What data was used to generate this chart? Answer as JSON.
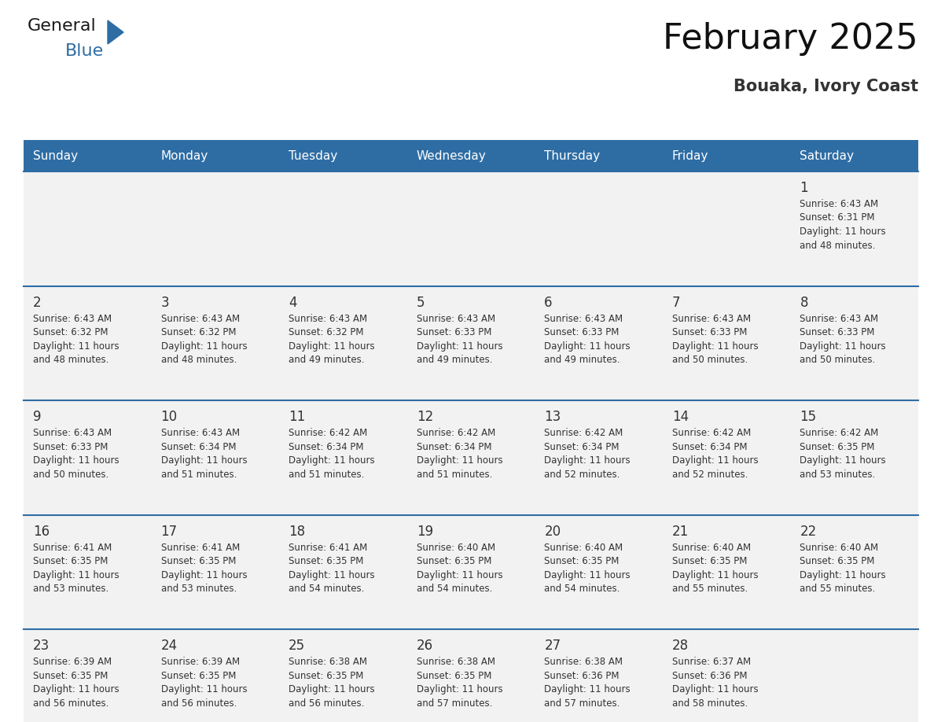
{
  "title": "February 2025",
  "subtitle": "Bouaka, Ivory Coast",
  "header_bg": "#2E6DA4",
  "header_text_color": "#FFFFFF",
  "cell_bg": "#F2F2F2",
  "day_number_color": "#333333",
  "cell_text_color": "#333333",
  "grid_line_color": "#2E6DA4",
  "days_of_week": [
    "Sunday",
    "Monday",
    "Tuesday",
    "Wednesday",
    "Thursday",
    "Friday",
    "Saturday"
  ],
  "weeks": [
    [
      {
        "day": null,
        "text": ""
      },
      {
        "day": null,
        "text": ""
      },
      {
        "day": null,
        "text": ""
      },
      {
        "day": null,
        "text": ""
      },
      {
        "day": null,
        "text": ""
      },
      {
        "day": null,
        "text": ""
      },
      {
        "day": 1,
        "text": "Sunrise: 6:43 AM\nSunset: 6:31 PM\nDaylight: 11 hours\nand 48 minutes."
      }
    ],
    [
      {
        "day": 2,
        "text": "Sunrise: 6:43 AM\nSunset: 6:32 PM\nDaylight: 11 hours\nand 48 minutes."
      },
      {
        "day": 3,
        "text": "Sunrise: 6:43 AM\nSunset: 6:32 PM\nDaylight: 11 hours\nand 48 minutes."
      },
      {
        "day": 4,
        "text": "Sunrise: 6:43 AM\nSunset: 6:32 PM\nDaylight: 11 hours\nand 49 minutes."
      },
      {
        "day": 5,
        "text": "Sunrise: 6:43 AM\nSunset: 6:33 PM\nDaylight: 11 hours\nand 49 minutes."
      },
      {
        "day": 6,
        "text": "Sunrise: 6:43 AM\nSunset: 6:33 PM\nDaylight: 11 hours\nand 49 minutes."
      },
      {
        "day": 7,
        "text": "Sunrise: 6:43 AM\nSunset: 6:33 PM\nDaylight: 11 hours\nand 50 minutes."
      },
      {
        "day": 8,
        "text": "Sunrise: 6:43 AM\nSunset: 6:33 PM\nDaylight: 11 hours\nand 50 minutes."
      }
    ],
    [
      {
        "day": 9,
        "text": "Sunrise: 6:43 AM\nSunset: 6:33 PM\nDaylight: 11 hours\nand 50 minutes."
      },
      {
        "day": 10,
        "text": "Sunrise: 6:43 AM\nSunset: 6:34 PM\nDaylight: 11 hours\nand 51 minutes."
      },
      {
        "day": 11,
        "text": "Sunrise: 6:42 AM\nSunset: 6:34 PM\nDaylight: 11 hours\nand 51 minutes."
      },
      {
        "day": 12,
        "text": "Sunrise: 6:42 AM\nSunset: 6:34 PM\nDaylight: 11 hours\nand 51 minutes."
      },
      {
        "day": 13,
        "text": "Sunrise: 6:42 AM\nSunset: 6:34 PM\nDaylight: 11 hours\nand 52 minutes."
      },
      {
        "day": 14,
        "text": "Sunrise: 6:42 AM\nSunset: 6:34 PM\nDaylight: 11 hours\nand 52 minutes."
      },
      {
        "day": 15,
        "text": "Sunrise: 6:42 AM\nSunset: 6:35 PM\nDaylight: 11 hours\nand 53 minutes."
      }
    ],
    [
      {
        "day": 16,
        "text": "Sunrise: 6:41 AM\nSunset: 6:35 PM\nDaylight: 11 hours\nand 53 minutes."
      },
      {
        "day": 17,
        "text": "Sunrise: 6:41 AM\nSunset: 6:35 PM\nDaylight: 11 hours\nand 53 minutes."
      },
      {
        "day": 18,
        "text": "Sunrise: 6:41 AM\nSunset: 6:35 PM\nDaylight: 11 hours\nand 54 minutes."
      },
      {
        "day": 19,
        "text": "Sunrise: 6:40 AM\nSunset: 6:35 PM\nDaylight: 11 hours\nand 54 minutes."
      },
      {
        "day": 20,
        "text": "Sunrise: 6:40 AM\nSunset: 6:35 PM\nDaylight: 11 hours\nand 54 minutes."
      },
      {
        "day": 21,
        "text": "Sunrise: 6:40 AM\nSunset: 6:35 PM\nDaylight: 11 hours\nand 55 minutes."
      },
      {
        "day": 22,
        "text": "Sunrise: 6:40 AM\nSunset: 6:35 PM\nDaylight: 11 hours\nand 55 minutes."
      }
    ],
    [
      {
        "day": 23,
        "text": "Sunrise: 6:39 AM\nSunset: 6:35 PM\nDaylight: 11 hours\nand 56 minutes."
      },
      {
        "day": 24,
        "text": "Sunrise: 6:39 AM\nSunset: 6:35 PM\nDaylight: 11 hours\nand 56 minutes."
      },
      {
        "day": 25,
        "text": "Sunrise: 6:38 AM\nSunset: 6:35 PM\nDaylight: 11 hours\nand 56 minutes."
      },
      {
        "day": 26,
        "text": "Sunrise: 6:38 AM\nSunset: 6:35 PM\nDaylight: 11 hours\nand 57 minutes."
      },
      {
        "day": 27,
        "text": "Sunrise: 6:38 AM\nSunset: 6:36 PM\nDaylight: 11 hours\nand 57 minutes."
      },
      {
        "day": 28,
        "text": "Sunrise: 6:37 AM\nSunset: 6:36 PM\nDaylight: 11 hours\nand 58 minutes."
      },
      {
        "day": null,
        "text": ""
      }
    ]
  ],
  "logo_color_general": "#1a1a1a",
  "logo_color_blue": "#2E6DA4",
  "logo_triangle_color": "#2E6DA4",
  "title_fontsize": 32,
  "subtitle_fontsize": 15,
  "header_fontsize": 11,
  "day_num_fontsize": 12,
  "cell_text_fontsize": 8.5
}
